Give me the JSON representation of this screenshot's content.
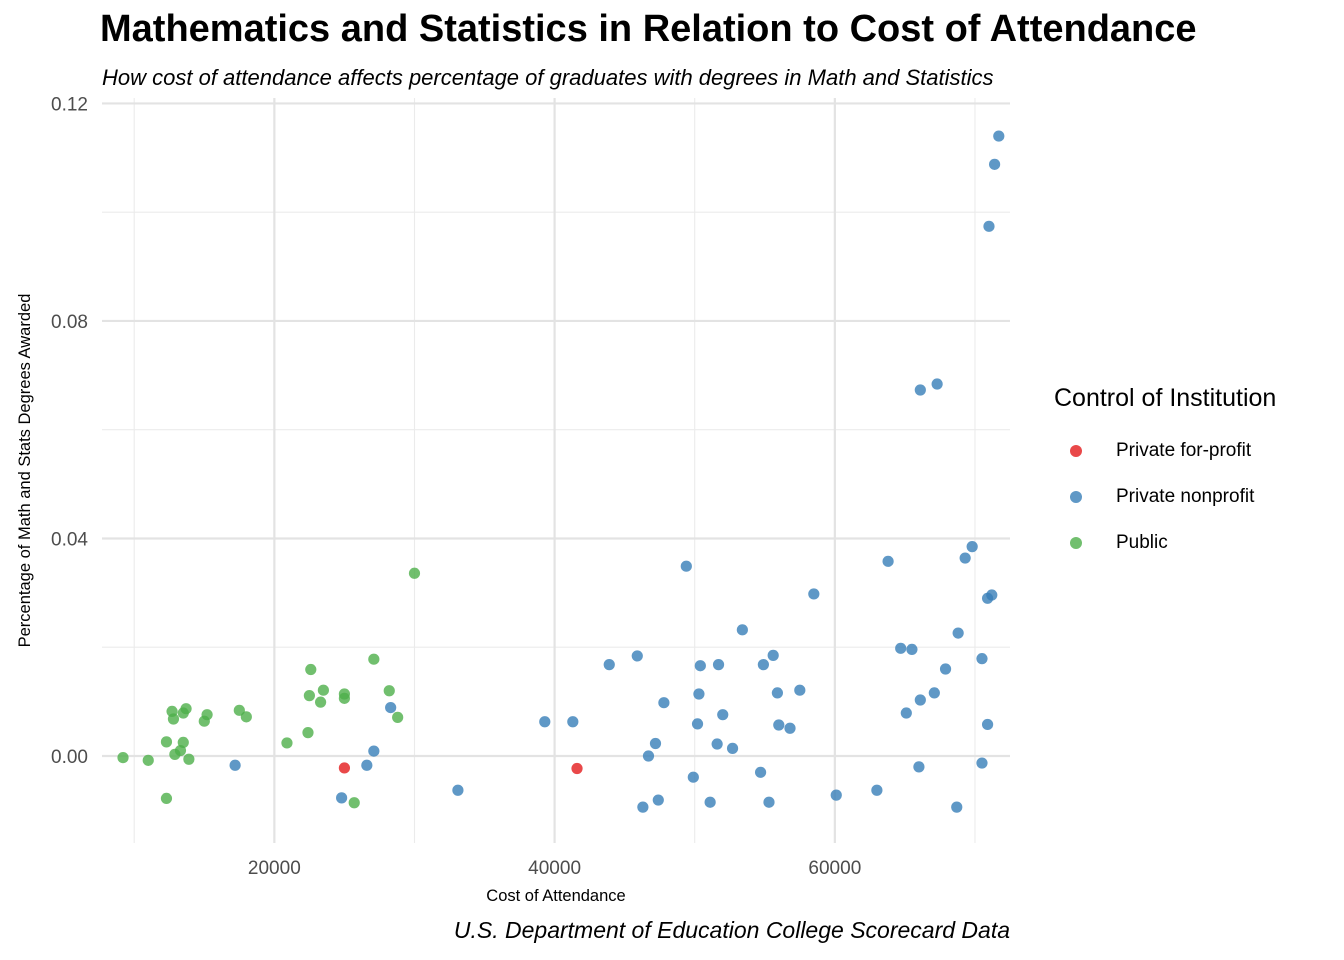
{
  "chart_data": {
    "type": "scatter",
    "title": "Mathematics and Statistics in Relation to Cost of Attendance",
    "subtitle": "How cost of attendance affects percentage of graduates with degrees in Math and Statistics",
    "caption": "U.S. Department of Education College Scorecard Data",
    "xlabel": "Cost of Attendance",
    "ylabel": "Percentage of Math and Stats Degrees Awarded",
    "xlim": [
      7700,
      72500
    ],
    "ylim": [
      -0.016,
      0.121
    ],
    "x_ticks": [
      20000,
      40000,
      60000
    ],
    "y_ticks": [
      0.0,
      0.04,
      0.08,
      0.12
    ],
    "x_tick_labels": [
      "20000",
      "40000",
      "60000"
    ],
    "y_tick_labels": [
      "0.00",
      "0.04",
      "0.08",
      "0.12"
    ],
    "grid": true,
    "legend": {
      "title": "Control of Institution",
      "position": "right"
    },
    "series": [
      {
        "name": "Private for-profit",
        "color": "#e41a1c",
        "points": [
          [
            25000,
            -0.0022
          ],
          [
            41600,
            -0.0023
          ]
        ]
      },
      {
        "name": "Private nonprofit",
        "color": "#377eb8",
        "points": [
          [
            17200,
            -0.0017
          ],
          [
            24800,
            -0.0077
          ],
          [
            26600,
            -0.0017
          ],
          [
            27100,
            0.0009
          ],
          [
            28300,
            0.0089
          ],
          [
            33100,
            -0.0063
          ],
          [
            39300,
            0.0063
          ],
          [
            41300,
            0.0063
          ],
          [
            43900,
            0.0168
          ],
          [
            45900,
            0.0184
          ],
          [
            46300,
            -0.0094
          ],
          [
            46700,
            0.0
          ],
          [
            47200,
            0.0023
          ],
          [
            47400,
            -0.0081
          ],
          [
            47800,
            0.0098
          ],
          [
            49400,
            0.0349
          ],
          [
            49900,
            -0.0039
          ],
          [
            50200,
            0.0059
          ],
          [
            50300,
            0.0114
          ],
          [
            50400,
            0.0166
          ],
          [
            51100,
            -0.0085
          ],
          [
            51600,
            0.0022
          ],
          [
            51700,
            0.0168
          ],
          [
            52000,
            0.0076
          ],
          [
            52700,
            0.0014
          ],
          [
            53400,
            0.0232
          ],
          [
            54700,
            -0.003
          ],
          [
            54900,
            0.0168
          ],
          [
            55300,
            -0.0085
          ],
          [
            55600,
            0.0185
          ],
          [
            55900,
            0.0116
          ],
          [
            56000,
            0.0057
          ],
          [
            56800,
            0.0051
          ],
          [
            57500,
            0.0121
          ],
          [
            58500,
            0.0298
          ],
          [
            60100,
            -0.0072
          ],
          [
            63000,
            -0.0063
          ],
          [
            63800,
            0.0358
          ],
          [
            64700,
            0.0198
          ],
          [
            65100,
            0.0079
          ],
          [
            65500,
            0.0196
          ],
          [
            66000,
            -0.002
          ],
          [
            66100,
            0.0103
          ],
          [
            66100,
            0.0673
          ],
          [
            67100,
            0.0116
          ],
          [
            67300,
            0.0684
          ],
          [
            67900,
            0.016
          ],
          [
            68700,
            -0.0094
          ],
          [
            68800,
            0.0226
          ],
          [
            69300,
            0.0364
          ],
          [
            69800,
            0.0385
          ],
          [
            70500,
            -0.0013
          ],
          [
            70500,
            0.0179
          ],
          [
            70900,
            0.0058
          ],
          [
            70900,
            0.029
          ],
          [
            71000,
            0.0974
          ],
          [
            71200,
            0.0296
          ],
          [
            71400,
            0.1088
          ],
          [
            71700,
            0.114
          ]
        ]
      },
      {
        "name": "Public",
        "color": "#4daf4a",
        "points": [
          [
            9200,
            -0.0003
          ],
          [
            11000,
            -0.0008
          ],
          [
            12300,
            0.0026
          ],
          [
            12300,
            -0.0078
          ],
          [
            12700,
            0.0082
          ],
          [
            12800,
            0.0068
          ],
          [
            12900,
            0.0003
          ],
          [
            13300,
            0.001
          ],
          [
            13500,
            0.0079
          ],
          [
            13500,
            0.0025
          ],
          [
            13700,
            0.0087
          ],
          [
            13900,
            -0.0006
          ],
          [
            15000,
            0.0064
          ],
          [
            15200,
            0.0076
          ],
          [
            17500,
            0.0084
          ],
          [
            18000,
            0.0072
          ],
          [
            20900,
            0.0024
          ],
          [
            22400,
            0.0043
          ],
          [
            22500,
            0.0111
          ],
          [
            22600,
            0.0159
          ],
          [
            23300,
            0.0099
          ],
          [
            23500,
            0.0121
          ],
          [
            25000,
            0.0114
          ],
          [
            25000,
            0.0106
          ],
          [
            25700,
            -0.0086
          ],
          [
            27100,
            0.0178
          ],
          [
            28200,
            0.012
          ],
          [
            28800,
            0.0071
          ],
          [
            30000,
            0.0336
          ]
        ]
      }
    ]
  }
}
